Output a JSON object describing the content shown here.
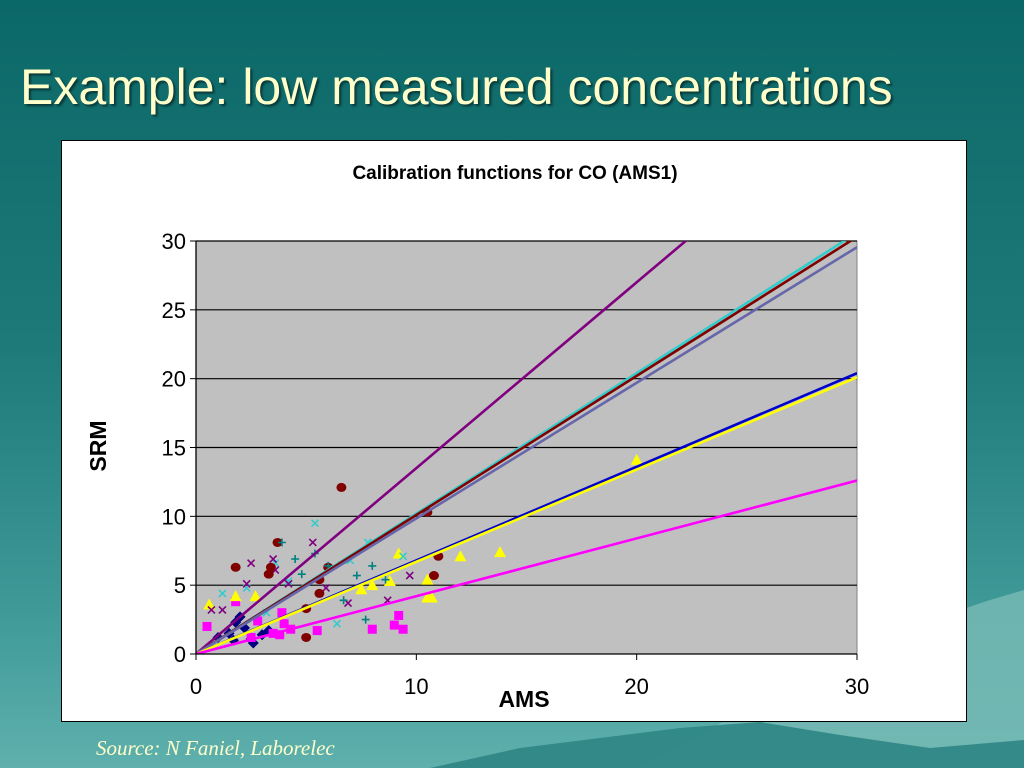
{
  "slide": {
    "title": "Example: low measured concentrations",
    "source": "Source: N Faniel, Laborelec"
  },
  "colors": {
    "background_top": "#0b6868",
    "background_bottom": "#5fb0ad",
    "title_text": "#ffffcc",
    "plot_area": "#c0c0c0"
  },
  "chart_data": {
    "type": "scatter",
    "title": "Calibration functions for CO (AMS1)",
    "xlabel": "AMS",
    "ylabel": "SRM",
    "xlim": [
      0,
      30
    ],
    "ylim": [
      0,
      30
    ],
    "x_ticks": [
      "0",
      "10",
      "20",
      "30"
    ],
    "y_ticks": [
      "0",
      "5",
      "10",
      "15",
      "20",
      "25",
      "30"
    ],
    "grid": "horizontal",
    "legend": "none",
    "lines": [
      {
        "color": "#800080",
        "slope": 1.35
      },
      {
        "color": "#33cccc",
        "slope": 1.02
      },
      {
        "color": "#800000",
        "slope": 1.01
      },
      {
        "color": "#6666aa",
        "slope": 0.985
      },
      {
        "color": "#0000cc",
        "slope": 0.68
      },
      {
        "color": "#ffff00",
        "slope": 0.67
      },
      {
        "color": "#ff00ff",
        "slope": 0.42
      }
    ],
    "series": [
      {
        "marker": "diamond",
        "color": "#000080",
        "points": [
          [
            1.0,
            1.2
          ],
          [
            1.5,
            1.5
          ],
          [
            1.8,
            2.3
          ],
          [
            2.0,
            2.7
          ],
          [
            2.2,
            1.9
          ],
          [
            2.5,
            1.1
          ],
          [
            2.6,
            0.8
          ],
          [
            3.0,
            1.4
          ],
          [
            3.3,
            1.7
          ],
          [
            1.7,
            1.0
          ]
        ]
      },
      {
        "marker": "square",
        "color": "#ff00ff",
        "points": [
          [
            0.5,
            2.0
          ],
          [
            1.8,
            3.8
          ],
          [
            2.5,
            1.2
          ],
          [
            2.8,
            2.4
          ],
          [
            3.5,
            1.5
          ],
          [
            3.9,
            3.0
          ],
          [
            4.0,
            2.2
          ],
          [
            4.3,
            1.8
          ],
          [
            5.5,
            1.7
          ],
          [
            8.0,
            1.8
          ],
          [
            9.0,
            2.1
          ],
          [
            9.2,
            2.8
          ],
          [
            9.4,
            1.8
          ],
          [
            3.8,
            1.4
          ]
        ]
      },
      {
        "marker": "triangle",
        "color": "#ffff00",
        "points": [
          [
            0.6,
            3.6
          ],
          [
            1.8,
            4.2
          ],
          [
            2.7,
            4.2
          ],
          [
            7.5,
            4.7
          ],
          [
            8.0,
            5.0
          ],
          [
            8.8,
            5.3
          ],
          [
            9.2,
            7.3
          ],
          [
            10.5,
            4.1
          ],
          [
            10.7,
            4.1
          ],
          [
            12.0,
            7.1
          ],
          [
            13.8,
            7.4
          ],
          [
            20.0,
            14.1
          ],
          [
            10.5,
            5.4
          ]
        ]
      },
      {
        "marker": "x",
        "color": "#33cccc",
        "points": [
          [
            1.2,
            4.4
          ],
          [
            2.3,
            4.8
          ],
          [
            3.2,
            3.0
          ],
          [
            4.2,
            5.3
          ],
          [
            5.4,
            9.5
          ],
          [
            6.4,
            2.2
          ],
          [
            7.0,
            6.8
          ],
          [
            7.8,
            8.1
          ],
          [
            9.4,
            7.1
          ],
          [
            3.6,
            6.6
          ]
        ]
      },
      {
        "marker": "x",
        "color": "#800080",
        "points": [
          [
            0.7,
            3.2
          ],
          [
            1.2,
            3.2
          ],
          [
            2.3,
            5.1
          ],
          [
            2.5,
            6.6
          ],
          [
            3.5,
            6.9
          ],
          [
            3.6,
            6.1
          ],
          [
            4.2,
            5.1
          ],
          [
            5.3,
            8.1
          ],
          [
            5.9,
            4.8
          ],
          [
            6.9,
            3.7
          ],
          [
            8.7,
            3.9
          ],
          [
            9.7,
            5.7
          ]
        ]
      },
      {
        "marker": "circle",
        "color": "#800000",
        "points": [
          [
            1.8,
            6.3
          ],
          [
            3.3,
            5.8
          ],
          [
            3.4,
            6.3
          ],
          [
            3.7,
            8.1
          ],
          [
            5.0,
            3.3
          ],
          [
            5.0,
            1.2
          ],
          [
            5.6,
            5.4
          ],
          [
            5.6,
            4.4
          ],
          [
            6.0,
            6.3
          ],
          [
            6.6,
            12.1
          ],
          [
            10.5,
            10.3
          ],
          [
            10.8,
            5.7
          ],
          [
            11.0,
            7.1
          ]
        ]
      },
      {
        "marker": "plus",
        "color": "#008080",
        "points": [
          [
            3.9,
            8.1
          ],
          [
            4.5,
            6.9
          ],
          [
            5.4,
            7.3
          ],
          [
            6.0,
            6.4
          ],
          [
            6.7,
            3.9
          ],
          [
            7.3,
            5.7
          ],
          [
            7.7,
            2.5
          ],
          [
            8.0,
            6.4
          ],
          [
            8.6,
            5.4
          ],
          [
            4.8,
            5.8
          ]
        ]
      }
    ]
  }
}
